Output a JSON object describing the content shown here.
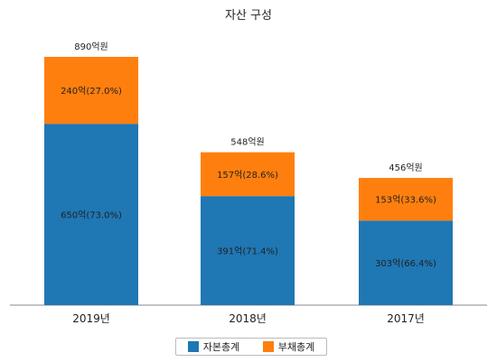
{
  "chart_data": {
    "type": "bar",
    "stacked": true,
    "title": "자산 구성",
    "xlabel": "",
    "ylabel": "",
    "categories": [
      "2019년",
      "2018년",
      "2017년"
    ],
    "series": [
      {
        "name": "자본총계",
        "color": "#1f77b4",
        "values": [
          650,
          391,
          303
        ],
        "labels": [
          "650억(73.0%)",
          "391억(71.4%)",
          "303억(66.4%)"
        ]
      },
      {
        "name": "부채총계",
        "color": "#ff7f0e",
        "values": [
          240,
          157,
          153
        ],
        "labels": [
          "240억(27.0%)",
          "157억(28.6%)",
          "153억(33.6%)"
        ]
      }
    ],
    "totals": [
      890,
      548,
      456
    ],
    "total_labels": [
      "890억원",
      "548억원",
      "456억원"
    ],
    "ylim": [
      0,
      1000
    ],
    "grid": false,
    "legend_position": "bottom"
  }
}
